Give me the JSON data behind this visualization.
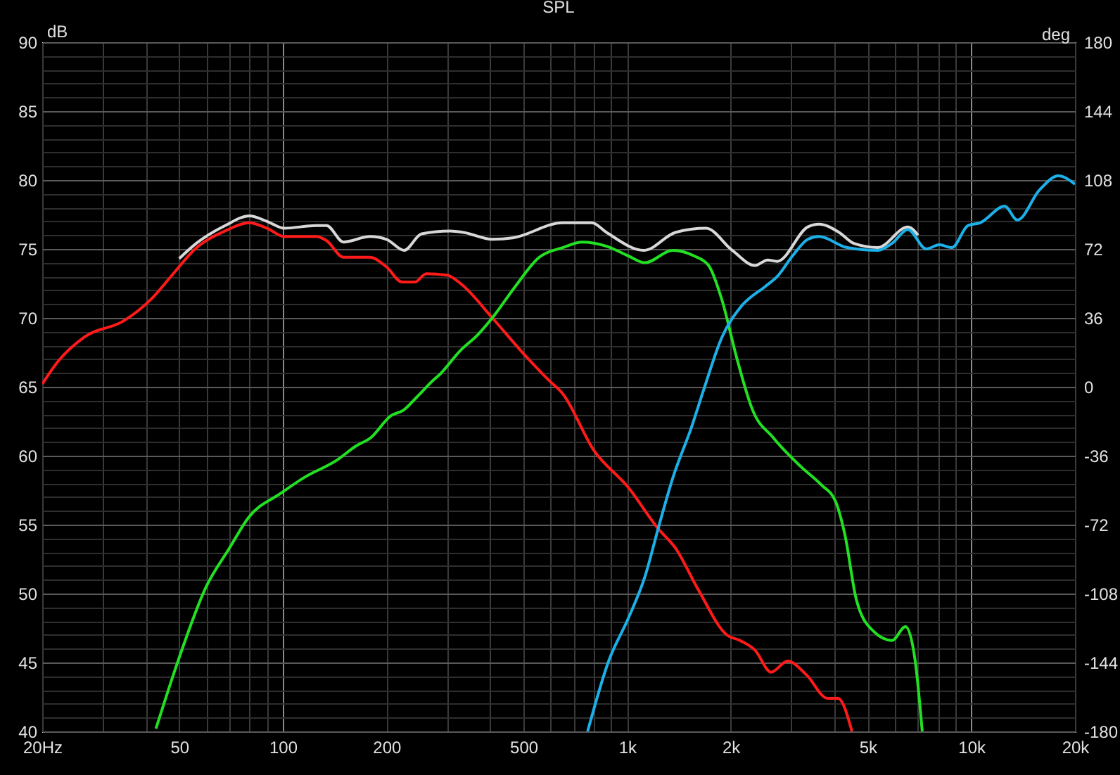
{
  "chart_data": {
    "type": "line",
    "title": "SPL",
    "ylabel": "dB",
    "y2label": "deg",
    "log": "x",
    "grid": true,
    "legend": false,
    "line_style": "solid",
    "marker": "none",
    "xlim": [
      20,
      20000
    ],
    "xticks": [
      {
        "value": 20,
        "label": "20Hz"
      },
      {
        "value": 30,
        "label": null
      },
      {
        "value": 40,
        "label": null
      },
      50,
      {
        "value": 60,
        "label": null
      },
      {
        "value": 70,
        "label": null
      },
      {
        "value": 80,
        "label": null
      },
      {
        "value": 90,
        "label": null
      },
      100,
      200,
      {
        "value": 300,
        "label": null
      },
      {
        "value": 400,
        "label": null
      },
      500,
      {
        "value": 600,
        "label": null
      },
      {
        "value": 700,
        "label": null
      },
      {
        "value": 800,
        "label": null
      },
      {
        "value": 900,
        "label": null
      },
      {
        "value": 1000,
        "label": "1k"
      },
      {
        "value": 2000,
        "label": "2k"
      },
      {
        "value": 3000,
        "label": null
      },
      {
        "value": 4000,
        "label": null
      },
      {
        "value": 5000,
        "label": "5k"
      },
      {
        "value": 6000,
        "label": null
      },
      {
        "value": 7000,
        "label": null
      },
      {
        "value": 8000,
        "label": null
      },
      {
        "value": 9000,
        "label": null
      },
      {
        "value": 10000,
        "label": "10k"
      },
      {
        "value": 20000,
        "label": "20k"
      }
    ],
    "ylim": [
      40,
      90
    ],
    "yticks": [
      40,
      {
        "value": 41,
        "label": null
      },
      {
        "value": 42,
        "label": null
      },
      {
        "value": 43,
        "label": null
      },
      {
        "value": 44,
        "label": null
      },
      45,
      {
        "value": 46,
        "label": null
      },
      {
        "value": 47,
        "label": null
      },
      {
        "value": 48,
        "label": null
      },
      {
        "value": 49,
        "label": null
      },
      50,
      {
        "value": 51,
        "label": null
      },
      {
        "value": 52,
        "label": null
      },
      {
        "value": 53,
        "label": null
      },
      {
        "value": 54,
        "label": null
      },
      55,
      {
        "value": 56,
        "label": null
      },
      {
        "value": 57,
        "label": null
      },
      {
        "value": 58,
        "label": null
      },
      {
        "value": 59,
        "label": null
      },
      60,
      {
        "value": 61,
        "label": null
      },
      {
        "value": 62,
        "label": null
      },
      {
        "value": 63,
        "label": null
      },
      {
        "value": 64,
        "label": null
      },
      65,
      {
        "value": 66,
        "label": null
      },
      {
        "value": 67,
        "label": null
      },
      {
        "value": 68,
        "label": null
      },
      {
        "value": 69,
        "label": null
      },
      70,
      {
        "value": 71,
        "label": null
      },
      {
        "value": 72,
        "label": null
      },
      {
        "value": 73,
        "label": null
      },
      {
        "value": 74,
        "label": null
      },
      75,
      {
        "value": 76,
        "label": null
      },
      {
        "value": 77,
        "label": null
      },
      {
        "value": 78,
        "label": null
      },
      {
        "value": 79,
        "label": null
      },
      80,
      {
        "value": 81,
        "label": null
      },
      {
        "value": 82,
        "label": null
      },
      {
        "value": 83,
        "label": null
      },
      {
        "value": 84,
        "label": null
      },
      85,
      {
        "value": 86,
        "label": null
      },
      {
        "value": 87,
        "label": null
      },
      {
        "value": 88,
        "label": null
      },
      {
        "value": 89,
        "label": null
      },
      90
    ],
    "y2lim": [
      -180,
      180
    ],
    "y2ticks": [
      -180,
      -144,
      -108,
      -72,
      -36,
      0,
      36,
      72,
      108,
      144,
      180
    ],
    "series": [
      {
        "color": "#d8d8d8",
        "x": [
          50,
          56,
          68,
          80,
          90,
          101,
          125,
          134,
          150,
          179,
          200,
          225,
          253,
          306,
          335,
          406,
          465,
          650,
          790,
          871,
          1120,
          1382,
          1695,
          2020,
          2352,
          2560,
          2730,
          3350,
          3610,
          4130,
          4560,
          5350,
          6540,
          7000
        ],
        "values": [
          74.3,
          75.4,
          76.7,
          77.4,
          77.0,
          76.5,
          76.7,
          76.7,
          75.5,
          75.9,
          75.7,
          74.9,
          76.1,
          76.3,
          76.2,
          75.7,
          75.8,
          76.9,
          76.9,
          76.2,
          74.9,
          76.2,
          76.5,
          74.9,
          73.8,
          74.2,
          74.1,
          76.6,
          76.8,
          76.2,
          75.4,
          75.1,
          76.6,
          76.0
        ]
      },
      {
        "color": "#ff1a1a",
        "x": [
          20,
          22,
          26.5,
          34.6,
          41.6,
          47.3,
          56.2,
          67.9,
          79.8,
          90,
          101,
          125,
          134,
          150,
          179,
          200,
          222,
          242,
          261,
          300,
          328,
          406,
          492,
          591,
          650,
          800,
          1008,
          1232,
          1382,
          1616,
          1948,
          2125,
          2352,
          2620,
          2928,
          3320,
          3824,
          4100,
          4500
        ],
        "values": [
          65.2,
          66.7,
          68.6,
          69.8,
          71.4,
          73.0,
          75.1,
          76.3,
          76.9,
          76.5,
          75.9,
          75.9,
          75.6,
          74.4,
          74.4,
          73.7,
          72.6,
          72.6,
          73.2,
          73.1,
          72.5,
          70.0,
          67.6,
          65.5,
          64.5,
          60.4,
          57.7,
          54.7,
          53.3,
          50.2,
          47.0,
          46.6,
          45.9,
          44.3,
          45.1,
          44.1,
          42.4,
          42.4,
          40.0
        ]
      },
      {
        "color": "#22e022",
        "x": [
          42.8,
          49.6,
          59.9,
          70,
          79.4,
          99,
          115,
          144,
          163,
          180,
          206,
          224,
          246,
          274,
          283,
          327,
          369,
          406,
          474,
          556,
          650,
          741,
          871,
          1008,
          1126,
          1358,
          1564,
          1725,
          1886,
          2077,
          2230,
          2300,
          2660,
          3200,
          3660,
          4030,
          4290,
          4640,
          5180,
          5880,
          6440,
          6870,
          7200
        ],
        "values": [
          40.2,
          45.1,
          50.5,
          53.3,
          55.5,
          57.3,
          58.4,
          59.7,
          60.7,
          61.3,
          62.9,
          63.3,
          64.3,
          65.5,
          65.8,
          67.6,
          68.8,
          70.0,
          72.3,
          74.4,
          75.1,
          75.5,
          75.2,
          74.5,
          74.0,
          74.9,
          74.5,
          73.8,
          71.3,
          67.2,
          64.5,
          63.5,
          61.3,
          59.2,
          57.9,
          56.7,
          54.3,
          49.5,
          47.3,
          46.6,
          47.6,
          45.1,
          40.0
        ]
      },
      {
        "color": "#1cb0e8",
        "x": [
          768,
          884,
          1008,
          1126,
          1240,
          1358,
          1540,
          1670,
          1886,
          2140,
          2525,
          2730,
          3025,
          3350,
          3610,
          4360,
          5350,
          5880,
          6540,
          7400,
          8070,
          8780,
          9780,
          10600,
          12500,
          13600,
          15800,
          17900,
          20000
        ],
        "values": [
          40.0,
          45.1,
          48.2,
          51.2,
          55.0,
          58.4,
          62.1,
          64.8,
          68.6,
          70.8,
          72.3,
          73.0,
          74.5,
          75.7,
          75.9,
          75.1,
          74.9,
          75.4,
          76.4,
          75.0,
          75.3,
          75.1,
          76.7,
          76.9,
          78.1,
          77.1,
          79.3,
          80.3,
          79.7
        ]
      }
    ]
  }
}
